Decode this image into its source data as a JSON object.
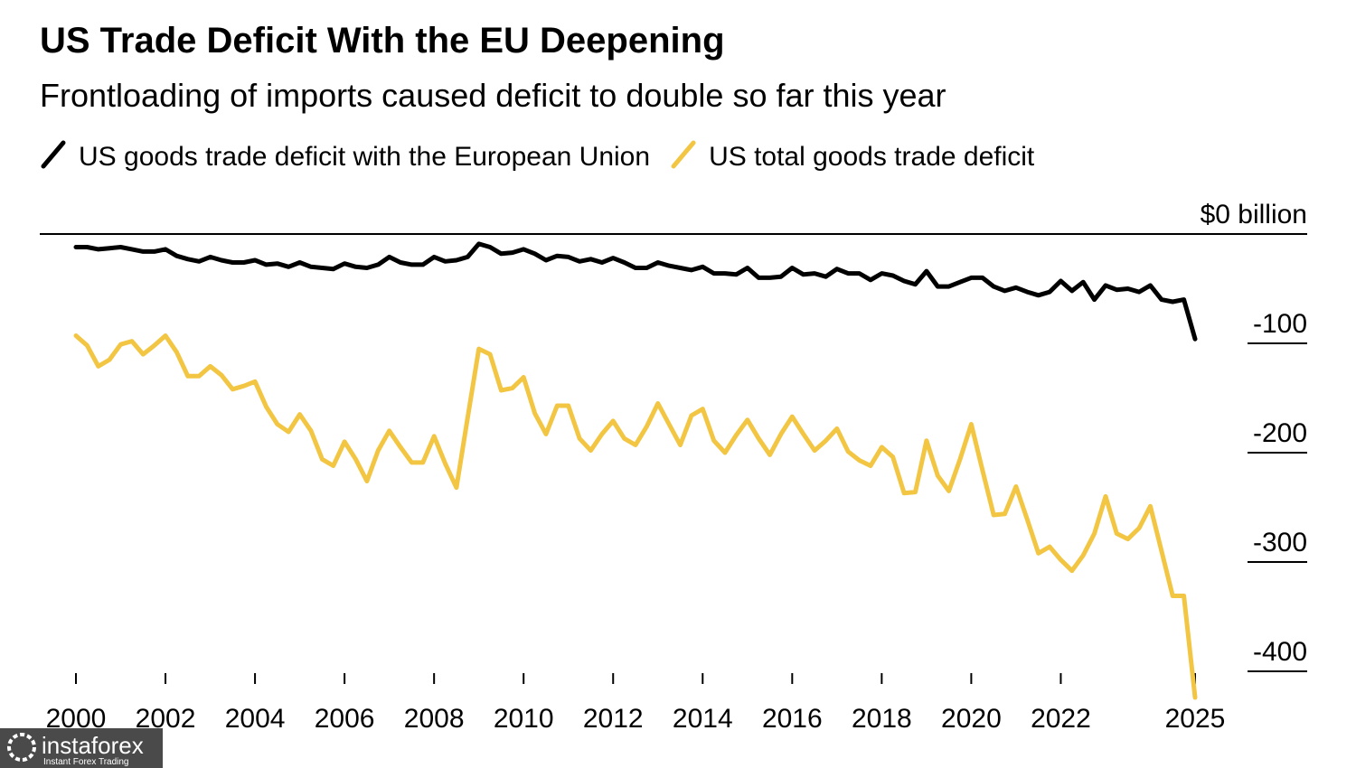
{
  "chart_data": {
    "type": "line",
    "title": "US Trade Deficit With the EU Deepening",
    "subtitle": "Frontloading of imports caused deficit to double so far this year",
    "x": [
      2000,
      2000.25,
      2000.5,
      2000.75,
      2001,
      2001.25,
      2001.5,
      2001.75,
      2002,
      2002.25,
      2002.5,
      2002.75,
      2003,
      2003.25,
      2003.5,
      2003.75,
      2004,
      2004.25,
      2004.5,
      2004.75,
      2005,
      2005.25,
      2005.5,
      2005.75,
      2006,
      2006.25,
      2006.5,
      2006.75,
      2007,
      2007.25,
      2007.5,
      2007.75,
      2008,
      2008.25,
      2008.5,
      2008.75,
      2009,
      2009.25,
      2009.5,
      2009.75,
      2010,
      2010.25,
      2010.5,
      2010.75,
      2011,
      2011.25,
      2011.5,
      2011.75,
      2012,
      2012.25,
      2012.5,
      2012.75,
      2013,
      2013.25,
      2013.5,
      2013.75,
      2014,
      2014.25,
      2014.5,
      2014.75,
      2015,
      2015.25,
      2015.5,
      2015.75,
      2016,
      2016.25,
      2016.5,
      2016.75,
      2017,
      2017.25,
      2017.5,
      2017.75,
      2018,
      2018.25,
      2018.5,
      2018.75,
      2019,
      2019.25,
      2019.5,
      2019.75,
      2020,
      2020.25,
      2020.5,
      2020.75,
      2021,
      2021.25,
      2021.5,
      2021.75,
      2022,
      2022.25,
      2022.5,
      2022.75,
      2023,
      2023.25,
      2023.5,
      2023.75,
      2024,
      2024.25,
      2024.5,
      2024.75,
      2025
    ],
    "series": [
      {
        "name": "US goods trade deficit with the European Union",
        "color": "#000000",
        "values": [
          -12,
          -12,
          -14,
          -13,
          -12,
          -14,
          -16,
          -16,
          -14,
          -20,
          -23,
          -25,
          -21,
          -24,
          -26,
          -26,
          -24,
          -28,
          -27,
          -30,
          -26,
          -30,
          -31,
          -32,
          -27,
          -30,
          -31,
          -28,
          -21,
          -26,
          -28,
          -28,
          -21,
          -25,
          -24,
          -21,
          -9,
          -12,
          -18,
          -17,
          -14,
          -18,
          -24,
          -20,
          -21,
          -25,
          -23,
          -26,
          -22,
          -26,
          -31,
          -31,
          -26,
          -29,
          -31,
          -33,
          -30,
          -36,
          -36,
          -37,
          -31,
          -40,
          -40,
          -39,
          -31,
          -37,
          -36,
          -39,
          -32,
          -36,
          -36,
          -42,
          -36,
          -38,
          -43,
          -46,
          -34,
          -48,
          -48,
          -44,
          -40,
          -40,
          -48,
          -52,
          -49,
          -53,
          -56,
          -53,
          -43,
          -52,
          -44,
          -60,
          -47,
          -51,
          -50,
          -53,
          -47,
          -60,
          -62,
          -60,
          -96
        ]
      },
      {
        "name": "US total goods trade deficit",
        "color": "#f2c643",
        "values": [
          -93,
          -102,
          -121,
          -115,
          -101,
          -98,
          -110,
          -102,
          -93,
          -108,
          -130,
          -130,
          -121,
          -129,
          -142,
          -139,
          -135,
          -158,
          -174,
          -181,
          -165,
          -180,
          -206,
          -212,
          -190,
          -206,
          -226,
          -198,
          -180,
          -195,
          -209,
          -209,
          -185,
          -210,
          -232,
          -168,
          -105,
          -110,
          -143,
          -141,
          -131,
          -164,
          -183,
          -157,
          -157,
          -187,
          -198,
          -183,
          -171,
          -187,
          -193,
          -176,
          -155,
          -174,
          -193,
          -166,
          -160,
          -189,
          -200,
          -184,
          -170,
          -187,
          -202,
          -183,
          -167,
          -183,
          -198,
          -189,
          -178,
          -199,
          -207,
          -212,
          -195,
          -204,
          -237,
          -236,
          -189,
          -221,
          -235,
          -206,
          -174,
          -216,
          -257,
          -256,
          -231,
          -261,
          -292,
          -286,
          -298,
          -308,
          -294,
          -274,
          -240,
          -274,
          -279,
          -269,
          -249,
          -290,
          -331,
          -331,
          -424
        ]
      }
    ],
    "xlim": [
      2000,
      2025
    ],
    "xticks": [
      2000,
      2002,
      2004,
      2006,
      2008,
      2010,
      2012,
      2014,
      2016,
      2018,
      2020,
      2022,
      2025
    ],
    "ylim": [
      -430,
      0
    ],
    "yticks": [
      {
        "value": 0,
        "label": "$0 billion"
      },
      -100,
      -200,
      -300,
      -400
    ]
  },
  "watermark": {
    "brand": "instaforex",
    "tagline": "Instant Forex Trading"
  }
}
